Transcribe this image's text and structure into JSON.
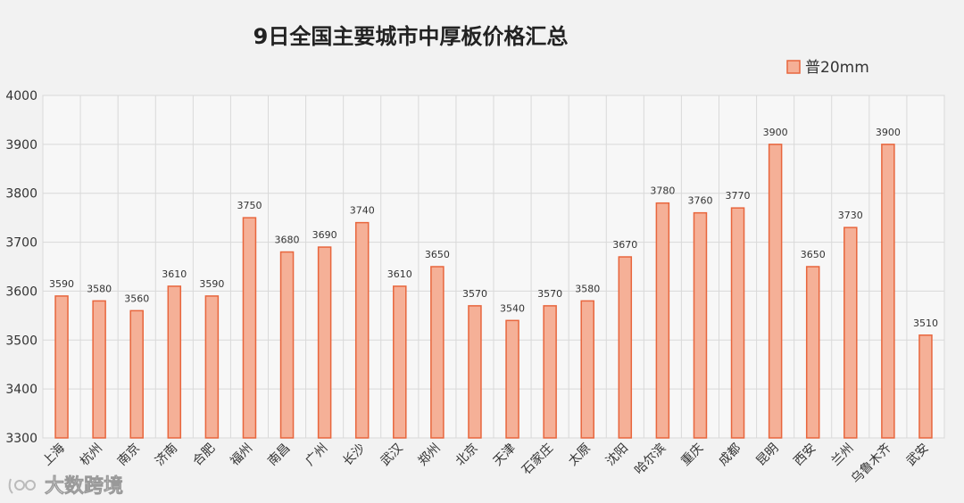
{
  "chart_data": {
    "type": "bar",
    "title": "9日全国主要城市中厚板价格汇总",
    "categories": [
      "上海",
      "杭州",
      "南京",
      "济南",
      "合肥",
      "福州",
      "南昌",
      "广州",
      "长沙",
      "武汉",
      "郑州",
      "北京",
      "天津",
      "石家庄",
      "太原",
      "沈阳",
      "哈尔滨",
      "重庆",
      "成都",
      "昆明",
      "西安",
      "兰州",
      "乌鲁木齐",
      "武安"
    ],
    "series": [
      {
        "name": "普20mm",
        "values": [
          3590,
          3580,
          3560,
          3610,
          3590,
          3750,
          3680,
          3690,
          3740,
          3610,
          3650,
          3570,
          3540,
          3570,
          3580,
          3670,
          3780,
          3760,
          3770,
          3900,
          3650,
          3730,
          3900,
          3510
        ]
      }
    ],
    "yticks": [
      3300,
      3400,
      3500,
      3600,
      3700,
      3800,
      3900,
      4000
    ],
    "ylim": [
      3300,
      4000
    ],
    "grid": true,
    "legend_position": "top-right",
    "colors": {
      "bar_fill": "#f5b097",
      "bar_stroke": "#e8663d",
      "grid": "#d9d9d9",
      "plot_bg": "#f7f7f7"
    }
  },
  "watermark": {
    "text": "大数跨境",
    "icon": "watermark-logo-icon"
  }
}
